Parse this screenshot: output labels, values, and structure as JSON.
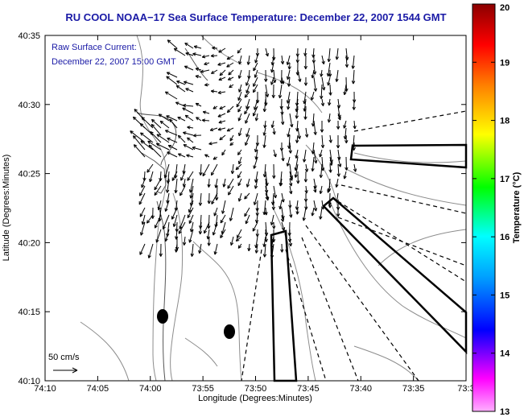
{
  "map": {
    "title": "RU COOL  NOAA−17  Sea Surface Temperature:  December 22, 2007 1544 GMT",
    "current_label": "Raw Surface Current:",
    "current_time": "December 22, 2007 15:00 GMT",
    "scale_label": "50 cm/s",
    "xlabel": "Longitude (Degrees:Minutes)",
    "ylabel": "Latitude (Degrees:Minutes)",
    "x_ticks": [
      "74:10",
      "74:05",
      "74:00",
      "73:55",
      "73:50",
      "73:45",
      "73:40",
      "73:35",
      "73:3"
    ],
    "y_ticks": [
      "40:35",
      "40:30",
      "40:25",
      "40:20",
      "40:15",
      "40:10"
    ],
    "lon_range": [
      "74:10 W",
      "73:30 W"
    ],
    "lat_range": [
      "40:10 N",
      "40:35 N"
    ]
  },
  "colorbar": {
    "label": "Temperature (°C)",
    "ticks": [
      "20",
      "19",
      "18",
      "17",
      "16",
      "15",
      "14",
      "13"
    ],
    "range": [
      13,
      20
    ],
    "colors": [
      "#ff00ff",
      "#0000ff",
      "#00a0ff",
      "#00ffff",
      "#00ff00",
      "#ffff00",
      "#ff8000",
      "#ff0000",
      "#8b0000"
    ]
  },
  "legend": {
    "icon": "vector-scale-arrow-icon"
  }
}
